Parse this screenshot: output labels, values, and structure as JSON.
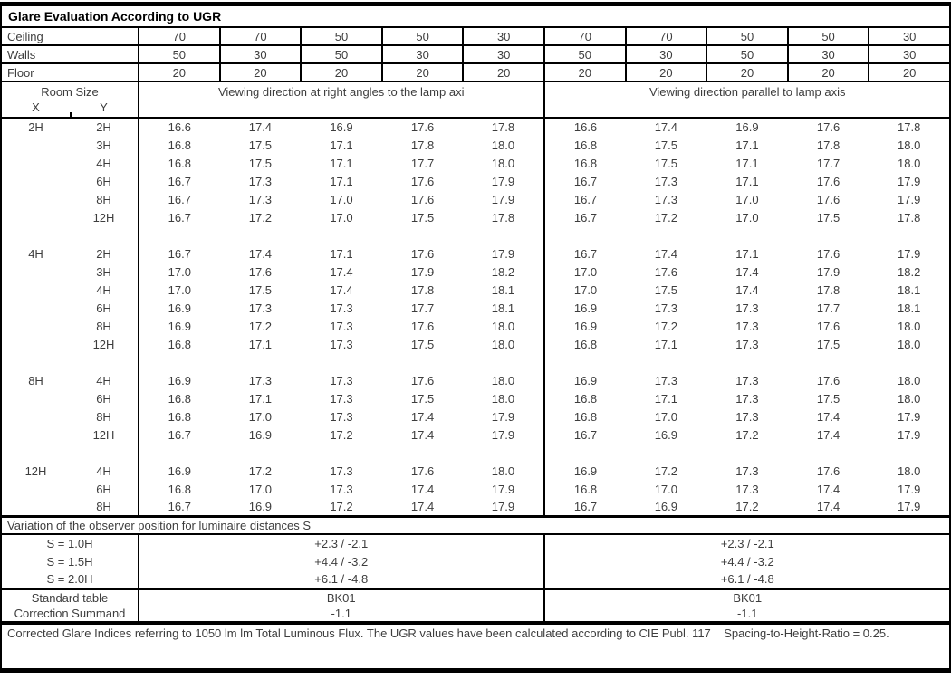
{
  "title": "Glare Evaluation According to UGR",
  "surface_rows": [
    {
      "label": "Ceiling",
      "values": [
        "70",
        "70",
        "50",
        "50",
        "30",
        "70",
        "70",
        "50",
        "50",
        "30"
      ]
    },
    {
      "label": "Walls",
      "values": [
        "50",
        "30",
        "50",
        "30",
        "30",
        "50",
        "30",
        "50",
        "30",
        "30"
      ]
    },
    {
      "label": "Floor",
      "values": [
        "20",
        "20",
        "20",
        "20",
        "20",
        "20",
        "20",
        "20",
        "20",
        "20"
      ]
    }
  ],
  "header": {
    "room_size": "Room Size",
    "x": "X",
    "y": "Y",
    "left_direction": "Viewing direction at right angles to the lamp axi",
    "right_direction": "Viewing direction parallel to lamp axis"
  },
  "ugr_rows": [
    {
      "x": "2H",
      "y": "2H",
      "values": [
        "16.6",
        "17.4",
        "16.9",
        "17.6",
        "17.8",
        "16.6",
        "17.4",
        "16.9",
        "17.6",
        "17.8"
      ]
    },
    {
      "x": "",
      "y": "3H",
      "values": [
        "16.8",
        "17.5",
        "17.1",
        "17.8",
        "18.0",
        "16.8",
        "17.5",
        "17.1",
        "17.8",
        "18.0"
      ]
    },
    {
      "x": "",
      "y": "4H",
      "values": [
        "16.8",
        "17.5",
        "17.1",
        "17.7",
        "18.0",
        "16.8",
        "17.5",
        "17.1",
        "17.7",
        "18.0"
      ]
    },
    {
      "x": "",
      "y": "6H",
      "values": [
        "16.7",
        "17.3",
        "17.1",
        "17.6",
        "17.9",
        "16.7",
        "17.3",
        "17.1",
        "17.6",
        "17.9"
      ]
    },
    {
      "x": "",
      "y": "8H",
      "values": [
        "16.7",
        "17.3",
        "17.0",
        "17.6",
        "17.9",
        "16.7",
        "17.3",
        "17.0",
        "17.6",
        "17.9"
      ]
    },
    {
      "x": "",
      "y": "12H",
      "values": [
        "16.7",
        "17.2",
        "17.0",
        "17.5",
        "17.8",
        "16.7",
        "17.2",
        "17.0",
        "17.5",
        "17.8"
      ]
    },
    {
      "spacer": true
    },
    {
      "x": "4H",
      "y": "2H",
      "values": [
        "16.7",
        "17.4",
        "17.1",
        "17.6",
        "17.9",
        "16.7",
        "17.4",
        "17.1",
        "17.6",
        "17.9"
      ]
    },
    {
      "x": "",
      "y": "3H",
      "values": [
        "17.0",
        "17.6",
        "17.4",
        "17.9",
        "18.2",
        "17.0",
        "17.6",
        "17.4",
        "17.9",
        "18.2"
      ]
    },
    {
      "x": "",
      "y": "4H",
      "values": [
        "17.0",
        "17.5",
        "17.4",
        "17.8",
        "18.1",
        "17.0",
        "17.5",
        "17.4",
        "17.8",
        "18.1"
      ]
    },
    {
      "x": "",
      "y": "6H",
      "values": [
        "16.9",
        "17.3",
        "17.3",
        "17.7",
        "18.1",
        "16.9",
        "17.3",
        "17.3",
        "17.7",
        "18.1"
      ]
    },
    {
      "x": "",
      "y": "8H",
      "values": [
        "16.9",
        "17.2",
        "17.3",
        "17.6",
        "18.0",
        "16.9",
        "17.2",
        "17.3",
        "17.6",
        "18.0"
      ]
    },
    {
      "x": "",
      "y": "12H",
      "values": [
        "16.8",
        "17.1",
        "17.3",
        "17.5",
        "18.0",
        "16.8",
        "17.1",
        "17.3",
        "17.5",
        "18.0"
      ]
    },
    {
      "spacer": true
    },
    {
      "x": "8H",
      "y": "4H",
      "values": [
        "16.9",
        "17.3",
        "17.3",
        "17.6",
        "18.0",
        "16.9",
        "17.3",
        "17.3",
        "17.6",
        "18.0"
      ]
    },
    {
      "x": "",
      "y": "6H",
      "values": [
        "16.8",
        "17.1",
        "17.3",
        "17.5",
        "18.0",
        "16.8",
        "17.1",
        "17.3",
        "17.5",
        "18.0"
      ]
    },
    {
      "x": "",
      "y": "8H",
      "values": [
        "16.8",
        "17.0",
        "17.3",
        "17.4",
        "17.9",
        "16.8",
        "17.0",
        "17.3",
        "17.4",
        "17.9"
      ]
    },
    {
      "x": "",
      "y": "12H",
      "values": [
        "16.7",
        "16.9",
        "17.2",
        "17.4",
        "17.9",
        "16.7",
        "16.9",
        "17.2",
        "17.4",
        "17.9"
      ]
    },
    {
      "spacer": true
    },
    {
      "x": "12H",
      "y": "4H",
      "values": [
        "16.9",
        "17.2",
        "17.3",
        "17.6",
        "18.0",
        "16.9",
        "17.2",
        "17.3",
        "17.6",
        "18.0"
      ]
    },
    {
      "x": "",
      "y": "6H",
      "values": [
        "16.8",
        "17.0",
        "17.3",
        "17.4",
        "17.9",
        "16.8",
        "17.0",
        "17.3",
        "17.4",
        "17.9"
      ]
    },
    {
      "x": "",
      "y": "8H",
      "values": [
        "16.7",
        "16.9",
        "17.2",
        "17.4",
        "17.9",
        "16.7",
        "16.9",
        "17.2",
        "17.4",
        "17.9"
      ]
    }
  ],
  "variation_title": "Variation of the observer position for luminaire distances S",
  "variation_rows": [
    {
      "label": "S = 1.0H",
      "left": "+2.3 / -2.1",
      "right": "+2.3 / -2.1"
    },
    {
      "label": "S = 1.5H",
      "left": "+4.4 / -3.2",
      "right": "+4.4 / -3.2"
    },
    {
      "label": "S = 2.0H",
      "left": "+6.1 / -4.8",
      "right": "+6.1 / -4.8"
    }
  ],
  "summary_rows": [
    {
      "label": "Standard table",
      "left": "BK01",
      "right": "BK01"
    },
    {
      "label": "Correction Summand",
      "left": "-1.1",
      "right": "-1.1"
    }
  ],
  "footer": "Corrected Glare Indices referring to 1050 lm lm Total Luminous Flux. The UGR values have been calculated according to CIE Publ. 117    Spacing-to-Height-Ratio = 0.25.",
  "colors": {
    "border": "#000000",
    "text": "#3d3d3d",
    "title_text": "#000000",
    "background": "#ffffff"
  }
}
